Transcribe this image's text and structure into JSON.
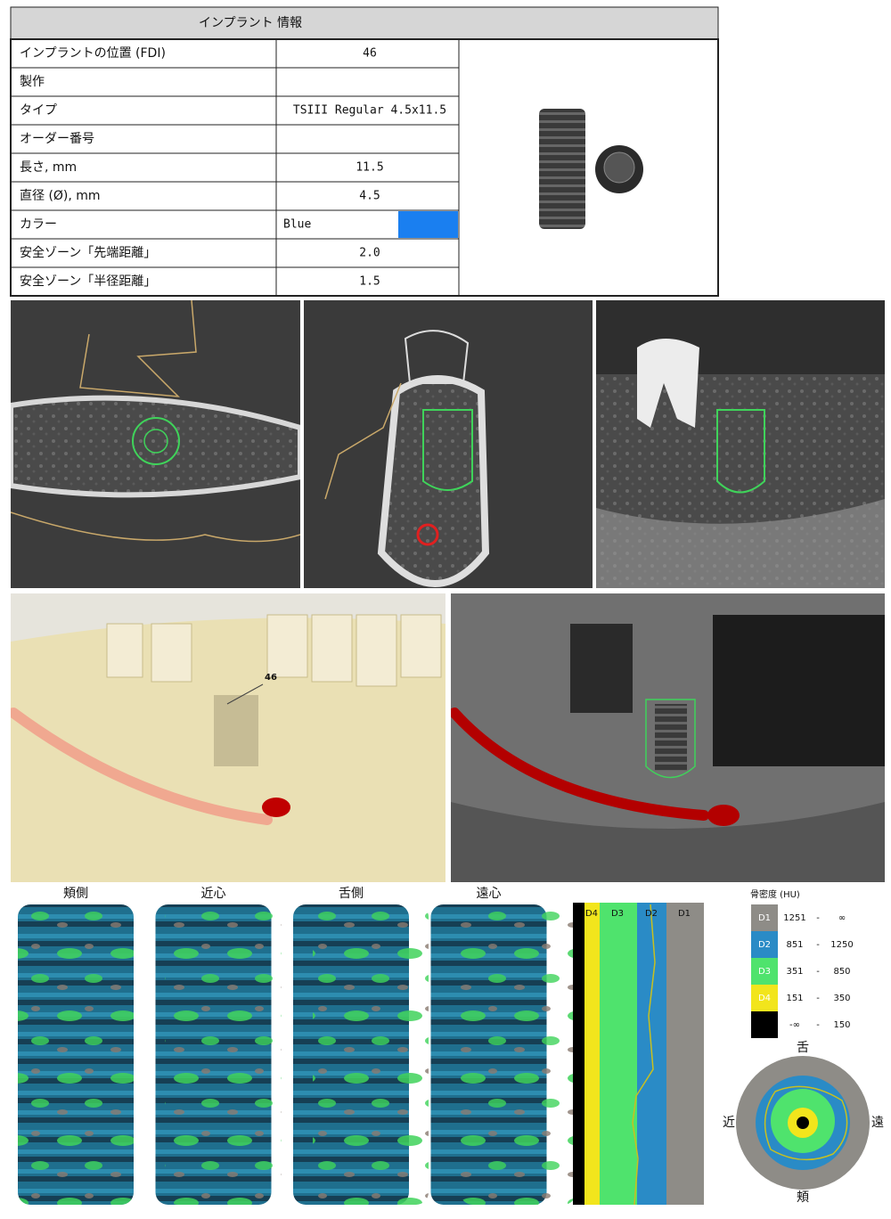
{
  "implant_info": {
    "title": "インプラント 情報",
    "rows": [
      {
        "label": "インプラントの位置 (FDI)",
        "value": "46"
      },
      {
        "label": "製作"
      },
      {
        "label": "タイプ",
        "value": "TSIII Regular 4.5x11.5"
      },
      {
        "label": "オーダー番号"
      },
      {
        "label": "長さ, mm",
        "value": "11.5"
      },
      {
        "label": "直径 (Ø), mm",
        "value": "4.5"
      },
      {
        "label": "カラー",
        "value": "Blue",
        "swatch": "#1a7ff0"
      },
      {
        "label": "安全ゾーン「先端距離」",
        "value": "2.0"
      },
      {
        "label": "安全ゾーン「半径距離」",
        "value": "1.5"
      }
    ]
  },
  "view_3d": {
    "tooth_label": "46"
  },
  "surface_maps": {
    "labels": [
      "頬側",
      "近心",
      "舌側",
      "遠心"
    ]
  },
  "density_profile": {
    "labels": [
      "D4",
      "D3",
      "D2",
      "D1"
    ]
  },
  "density_legend": {
    "title": "骨密度 (HU)",
    "separator": "-",
    "rows": [
      {
        "class": "D1",
        "color": "#8e8c87",
        "min": "1251",
        "max": "∞"
      },
      {
        "class": "D2",
        "color": "#2a8bc6",
        "min": "851",
        "max": "1250"
      },
      {
        "class": "D3",
        "color": "#4fe36d",
        "min": "351",
        "max": "850"
      },
      {
        "class": "D4",
        "color": "#f2e51c",
        "min": "151",
        "max": "350"
      },
      {
        "color": "#000000",
        "min": "-∞",
        "max": "150"
      }
    ]
  },
  "cross_section": {
    "top": "舌",
    "bottom": "頬",
    "left": "近",
    "right": "遠"
  }
}
